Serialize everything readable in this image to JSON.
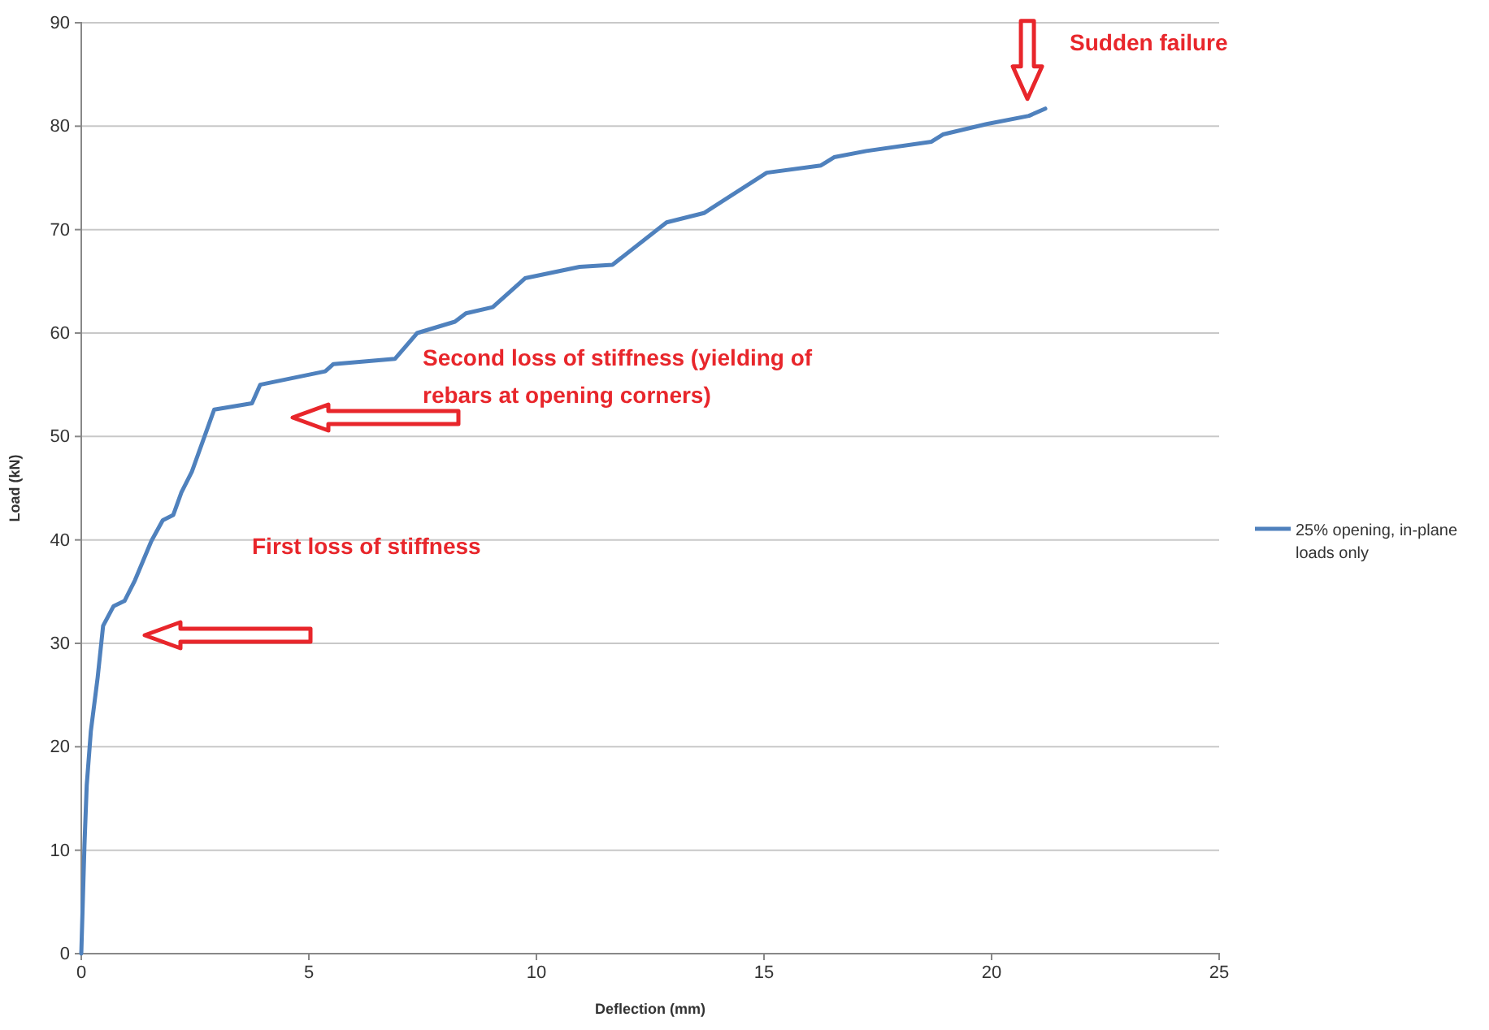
{
  "chart_data": {
    "type": "line",
    "xlabel": "Deflection (mm)",
    "ylabel": "Load (kN)",
    "xlim": [
      0,
      25
    ],
    "xticks": [
      0,
      5,
      10,
      15,
      20,
      25
    ],
    "ylim": [
      0,
      90
    ],
    "yticks": [
      0,
      10,
      20,
      30,
      40,
      50,
      60,
      70,
      80,
      90
    ],
    "grid": "y",
    "legend": "right",
    "line_style": "solid",
    "marker": "none",
    "series": [
      {
        "name": "25% opening, in-plane loads only",
        "color": "#4f81bd",
        "x": [
          0,
          0.07,
          0.12,
          0.21,
          0.36,
          0.48,
          0.71,
          0.95,
          1.18,
          1.54,
          1.79,
          2.02,
          2.2,
          2.43,
          2.92,
          3.75,
          3.93,
          5.36,
          5.54,
          6.89,
          7.38,
          8.21,
          8.45,
          9.04,
          9.75,
          10.95,
          11.67,
          12.86,
          13.68,
          15.06,
          16.25,
          16.54,
          17.25,
          18.68,
          18.93,
          19.89,
          20.82,
          21.18
        ],
        "values": [
          0,
          10.5,
          16.3,
          21.5,
          26.7,
          31.7,
          33.6,
          34.1,
          36.1,
          39.9,
          41.9,
          42.4,
          44.6,
          46.6,
          52.6,
          53.2,
          55,
          56.3,
          57,
          57.5,
          60,
          61.1,
          61.9,
          62.5,
          65.3,
          66.4,
          66.6,
          70.7,
          71.6,
          75.5,
          76.2,
          77,
          77.6,
          78.5,
          79.2,
          80.2,
          81,
          81.7
        ]
      }
    ],
    "annotations": [
      "First loss of stiffness",
      "Second loss of stiffness (yielding of rebars at opening corners)",
      {
        "text": "Sudden failure",
        "x": 21.18,
        "y": 81.7
      }
    ]
  }
}
